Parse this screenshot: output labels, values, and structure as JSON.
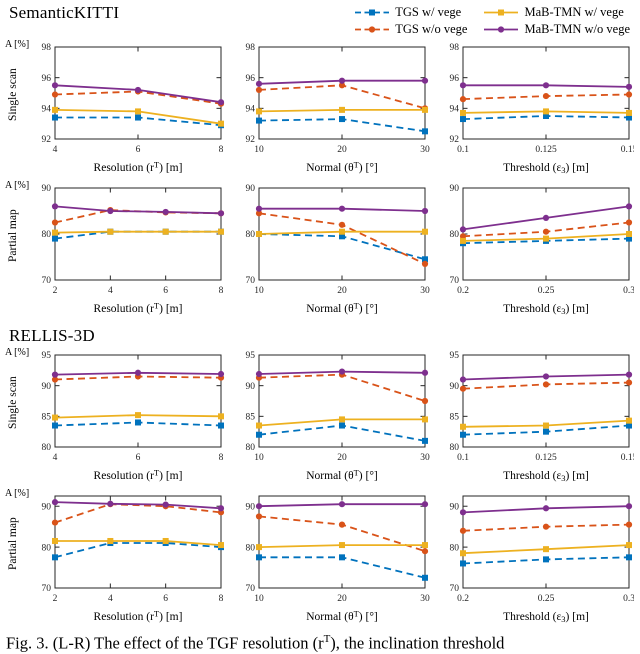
{
  "series_styles": [
    {
      "name": "TGS w/ vege",
      "color": "#0072BD",
      "dash": true,
      "marker": "square"
    },
    {
      "name": "TGS w/o vege",
      "color": "#D95319",
      "dash": true,
      "marker": "circle"
    },
    {
      "name": "MaB-TMN w/ vege",
      "color": "#EDB120",
      "dash": false,
      "marker": "square"
    },
    {
      "name": "MaB-TMN w/o vege",
      "color": "#7E2F8E",
      "dash": false,
      "marker": "circle"
    }
  ],
  "sections": [
    {
      "title": "SemanticKITTI",
      "rows": [
        {
          "label": "Single scan",
          "axis_label": "A [%]"
        },
        {
          "label": "Partial map",
          "axis_label": "A [%]"
        }
      ]
    },
    {
      "title": "RELLIS-3D",
      "rows": [
        {
          "label": "Single scan",
          "axis_label": "A [%]"
        },
        {
          "label": "Partial map",
          "axis_label": "A [%]"
        }
      ]
    }
  ],
  "caption": {
    "pre": "Fig. 3. (L-R) The effect of the TGF resolution (r",
    "sup": "T",
    "post": "), the inclination threshold"
  },
  "chart_data": [
    {
      "type": "line",
      "section": "SemanticKITTI",
      "row": "Single scan",
      "x": [
        4,
        6,
        8
      ],
      "xticklabels": [
        "4",
        "6",
        "8"
      ],
      "xlabel": "Resolution (r^T) [m]",
      "ylabel": "A [%]",
      "ylim": [
        92,
        98
      ],
      "yticks": [
        92,
        94,
        96,
        98
      ],
      "grid": false,
      "series": [
        {
          "name": "TGS w/ vege",
          "values": [
            93.4,
            93.4,
            92.9
          ]
        },
        {
          "name": "TGS w/o vege",
          "values": [
            94.9,
            95.1,
            94.3
          ]
        },
        {
          "name": "MaB-TMN w/ vege",
          "values": [
            93.9,
            93.8,
            93.0
          ]
        },
        {
          "name": "MaB-TMN w/o vege",
          "values": [
            95.5,
            95.2,
            94.4
          ]
        }
      ]
    },
    {
      "type": "line",
      "section": "SemanticKITTI",
      "row": "Single scan",
      "x": [
        10,
        20,
        30
      ],
      "xticklabels": [
        "10",
        "20",
        "30"
      ],
      "xlabel": "Normal (θ^T) [°]",
      "ylabel": "A [%]",
      "ylim": [
        92,
        98
      ],
      "yticks": [
        92,
        94,
        96,
        98
      ],
      "grid": false,
      "series": [
        {
          "name": "TGS w/ vege",
          "values": [
            93.2,
            93.3,
            92.5
          ]
        },
        {
          "name": "TGS w/o vege",
          "values": [
            95.2,
            95.5,
            94.0
          ]
        },
        {
          "name": "MaB-TMN w/ vege",
          "values": [
            93.8,
            93.9,
            93.9
          ]
        },
        {
          "name": "MaB-TMN w/o vege",
          "values": [
            95.6,
            95.8,
            95.8
          ]
        }
      ]
    },
    {
      "type": "line",
      "section": "SemanticKITTI",
      "row": "Single scan",
      "x": [
        0.1,
        0.125,
        0.15
      ],
      "xticklabels": [
        "0.1",
        "0.125",
        "0.15"
      ],
      "xlabel": "Threshold (ε_3) [m]",
      "ylabel": "A [%]",
      "ylim": [
        92,
        98
      ],
      "yticks": [
        92,
        94,
        96,
        98
      ],
      "grid": false,
      "series": [
        {
          "name": "TGS w/ vege",
          "values": [
            93.3,
            93.5,
            93.4
          ]
        },
        {
          "name": "TGS w/o vege",
          "values": [
            94.6,
            94.8,
            94.9
          ]
        },
        {
          "name": "MaB-TMN w/ vege",
          "values": [
            93.7,
            93.8,
            93.7
          ]
        },
        {
          "name": "MaB-TMN w/o vege",
          "values": [
            95.5,
            95.5,
            95.4
          ]
        }
      ]
    },
    {
      "type": "line",
      "section": "SemanticKITTI",
      "row": "Partial map",
      "x": [
        2,
        4,
        6,
        8
      ],
      "xticklabels": [
        "2",
        "4",
        "6",
        "8"
      ],
      "xlabel": "Resolution (r^T) [m]",
      "ylabel": "A [%]",
      "ylim": [
        70,
        90
      ],
      "yticks": [
        70,
        80,
        90
      ],
      "grid": false,
      "series": [
        {
          "name": "TGS w/ vege",
          "values": [
            79.0,
            80.5,
            80.5,
            80.5
          ]
        },
        {
          "name": "TGS w/o vege",
          "values": [
            82.5,
            85.2,
            84.7,
            84.5
          ]
        },
        {
          "name": "MaB-TMN w/ vege",
          "values": [
            80.3,
            80.5,
            80.5,
            80.5
          ]
        },
        {
          "name": "MaB-TMN w/o vege",
          "values": [
            86.0,
            85.0,
            84.8,
            84.5
          ]
        }
      ]
    },
    {
      "type": "line",
      "section": "SemanticKITTI",
      "row": "Partial map",
      "x": [
        10,
        20,
        30
      ],
      "xticklabels": [
        "10",
        "20",
        "30"
      ],
      "xlabel": "Normal (θ^T) [°]",
      "ylabel": "A [%]",
      "ylim": [
        70,
        90
      ],
      "yticks": [
        70,
        80,
        90
      ],
      "grid": false,
      "series": [
        {
          "name": "TGS w/ vege",
          "values": [
            80.0,
            79.5,
            74.5
          ]
        },
        {
          "name": "TGS w/o vege",
          "values": [
            84.5,
            82.0,
            73.5
          ]
        },
        {
          "name": "MaB-TMN w/ vege",
          "values": [
            80.0,
            80.5,
            80.5
          ]
        },
        {
          "name": "MaB-TMN w/o vege",
          "values": [
            85.5,
            85.5,
            85.0
          ]
        }
      ]
    },
    {
      "type": "line",
      "section": "SemanticKITTI",
      "row": "Partial map",
      "x": [
        0.2,
        0.25,
        0.3
      ],
      "xticklabels": [
        "0.2",
        "0.25",
        "0.3"
      ],
      "xlabel": "Threshold (ε_3) [m]",
      "ylabel": "A [%]",
      "ylim": [
        70,
        90
      ],
      "yticks": [
        70,
        80,
        90
      ],
      "grid": false,
      "series": [
        {
          "name": "TGS w/ vege",
          "values": [
            78.0,
            78.5,
            79.0
          ]
        },
        {
          "name": "TGS w/o vege",
          "values": [
            79.5,
            80.5,
            82.5
          ]
        },
        {
          "name": "MaB-TMN w/ vege",
          "values": [
            78.5,
            79.0,
            80.0
          ]
        },
        {
          "name": "MaB-TMN w/o vege",
          "values": [
            81.0,
            83.5,
            86.0
          ]
        }
      ]
    },
    {
      "type": "line",
      "section": "RELLIS-3D",
      "row": "Single scan",
      "x": [
        4,
        6,
        8
      ],
      "xticklabels": [
        "4",
        "6",
        "8"
      ],
      "xlabel": "Resolution (r^T) [m]",
      "ylabel": "A [%]",
      "ylim": [
        80,
        95
      ],
      "yticks": [
        80,
        85,
        90,
        95
      ],
      "grid": false,
      "series": [
        {
          "name": "TGS w/ vege",
          "values": [
            83.5,
            84.0,
            83.5
          ]
        },
        {
          "name": "TGS w/o vege",
          "values": [
            91.0,
            91.5,
            91.3
          ]
        },
        {
          "name": "MaB-TMN w/ vege",
          "values": [
            84.8,
            85.2,
            85.0
          ]
        },
        {
          "name": "MaB-TMN w/o vege",
          "values": [
            91.8,
            92.1,
            91.9
          ]
        }
      ]
    },
    {
      "type": "line",
      "section": "RELLIS-3D",
      "row": "Single scan",
      "x": [
        10,
        20,
        30
      ],
      "xticklabels": [
        "10",
        "20",
        "30"
      ],
      "xlabel": "Normal (θ^T) [°]",
      "ylabel": "A [%]",
      "ylim": [
        80,
        95
      ],
      "yticks": [
        80,
        85,
        90,
        95
      ],
      "grid": false,
      "series": [
        {
          "name": "TGS w/ vege",
          "values": [
            82.0,
            83.5,
            81.0
          ]
        },
        {
          "name": "TGS w/o vege",
          "values": [
            91.3,
            91.8,
            87.5
          ]
        },
        {
          "name": "MaB-TMN w/ vege",
          "values": [
            83.5,
            84.5,
            84.5
          ]
        },
        {
          "name": "MaB-TMN w/o vege",
          "values": [
            91.9,
            92.3,
            92.1
          ]
        }
      ]
    },
    {
      "type": "line",
      "section": "RELLIS-3D",
      "row": "Single scan",
      "x": [
        0.1,
        0.125,
        0.15
      ],
      "xticklabels": [
        "0.1",
        "0.125",
        "0.15"
      ],
      "xlabel": "Threshold (ε_3) [m]",
      "ylabel": "A [%]",
      "ylim": [
        80,
        95
      ],
      "yticks": [
        80,
        85,
        90,
        95
      ],
      "grid": false,
      "series": [
        {
          "name": "TGS w/ vege",
          "values": [
            82.0,
            82.5,
            83.5
          ]
        },
        {
          "name": "TGS w/o vege",
          "values": [
            89.5,
            90.2,
            90.5
          ]
        },
        {
          "name": "MaB-TMN w/ vege",
          "values": [
            83.3,
            83.5,
            84.3
          ]
        },
        {
          "name": "MaB-TMN w/o vege",
          "values": [
            91.0,
            91.5,
            91.8
          ]
        }
      ]
    },
    {
      "type": "line",
      "section": "RELLIS-3D",
      "row": "Partial map",
      "x": [
        2,
        4,
        6,
        8
      ],
      "xticklabels": [
        "2",
        "4",
        "6",
        "8"
      ],
      "xlabel": "Resolution (r^T) [m]",
      "ylabel": "A [%]",
      "ylim": [
        70,
        92.5
      ],
      "yticks": [
        70,
        80,
        90
      ],
      "grid": false,
      "series": [
        {
          "name": "TGS w/ vege",
          "values": [
            77.5,
            81.0,
            81.0,
            80.0
          ]
        },
        {
          "name": "TGS w/o vege",
          "values": [
            86.0,
            90.5,
            90.0,
            88.5
          ]
        },
        {
          "name": "MaB-TMN w/ vege",
          "values": [
            81.5,
            81.5,
            81.5,
            80.5
          ]
        },
        {
          "name": "MaB-TMN w/o vege",
          "values": [
            91.0,
            90.6,
            90.4,
            89.5
          ]
        }
      ]
    },
    {
      "type": "line",
      "section": "RELLIS-3D",
      "row": "Partial map",
      "x": [
        10,
        20,
        30
      ],
      "xticklabels": [
        "10",
        "20",
        "30"
      ],
      "xlabel": "Normal (θ^T) [°]",
      "ylabel": "A [%]",
      "ylim": [
        70,
        92.5
      ],
      "yticks": [
        70,
        80,
        90
      ],
      "grid": false,
      "series": [
        {
          "name": "TGS w/ vege",
          "values": [
            77.5,
            77.5,
            72.5
          ]
        },
        {
          "name": "TGS w/o vege",
          "values": [
            87.5,
            85.5,
            79.0
          ]
        },
        {
          "name": "MaB-TMN w/ vege",
          "values": [
            80.0,
            80.5,
            80.5
          ]
        },
        {
          "name": "MaB-TMN w/o vege",
          "values": [
            90.0,
            90.5,
            90.5
          ]
        }
      ]
    },
    {
      "type": "line",
      "section": "RELLIS-3D",
      "row": "Partial map",
      "x": [
        0.2,
        0.25,
        0.3
      ],
      "xticklabels": [
        "0.2",
        "0.25",
        "0.3"
      ],
      "xlabel": "Threshold (ε_3) [m]",
      "ylabel": "A [%]",
      "ylim": [
        70,
        92.5
      ],
      "yticks": [
        70,
        80,
        90
      ],
      "grid": false,
      "series": [
        {
          "name": "TGS w/ vege",
          "values": [
            76.0,
            77.0,
            77.5
          ]
        },
        {
          "name": "TGS w/o vege",
          "values": [
            84.0,
            85.0,
            85.5
          ]
        },
        {
          "name": "MaB-TMN w/ vege",
          "values": [
            78.5,
            79.5,
            80.5
          ]
        },
        {
          "name": "MaB-TMN w/o vege",
          "values": [
            88.5,
            89.5,
            90.0
          ]
        }
      ]
    }
  ]
}
